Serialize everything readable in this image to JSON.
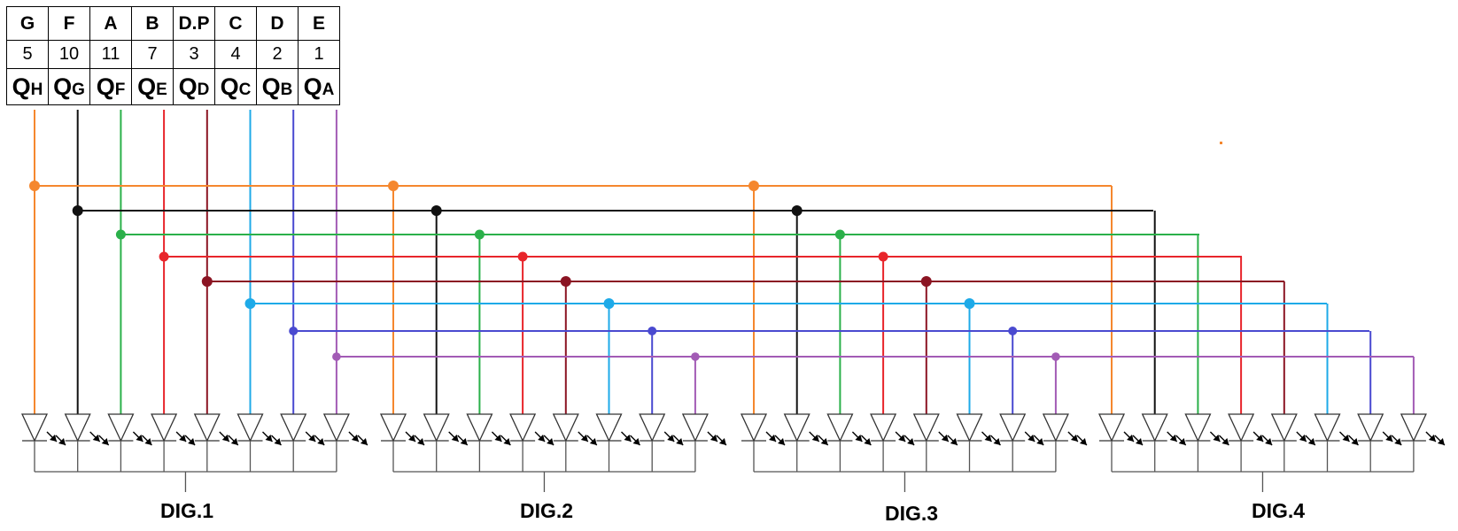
{
  "table": {
    "segments": [
      "G",
      "F",
      "A",
      "B",
      "D.P",
      "C",
      "D",
      "E"
    ],
    "pins": [
      "5",
      "10",
      "11",
      "7",
      "3",
      "4",
      "2",
      "1"
    ],
    "outputs": [
      {
        "q": "Q",
        "sub": "H"
      },
      {
        "q": "Q",
        "sub": "G"
      },
      {
        "q": "Q",
        "sub": "F"
      },
      {
        "q": "Q",
        "sub": "E"
      },
      {
        "q": "Q",
        "sub": "D"
      },
      {
        "q": "Q",
        "sub": "C"
      },
      {
        "q": "Q",
        "sub": "B"
      },
      {
        "q": "Q",
        "sub": "A"
      }
    ]
  },
  "wire_colors": [
    "#f5872e",
    "#111111",
    "#2bb04a",
    "#e8252b",
    "#8b1423",
    "#1eaae8",
    "#4a4ad0",
    "#a25bb5"
  ],
  "digits": [
    {
      "label": "DIG.1"
    },
    {
      "label": "DIG.2"
    },
    {
      "label": "DIG.3"
    },
    {
      "label": "DIG.4"
    }
  ]
}
